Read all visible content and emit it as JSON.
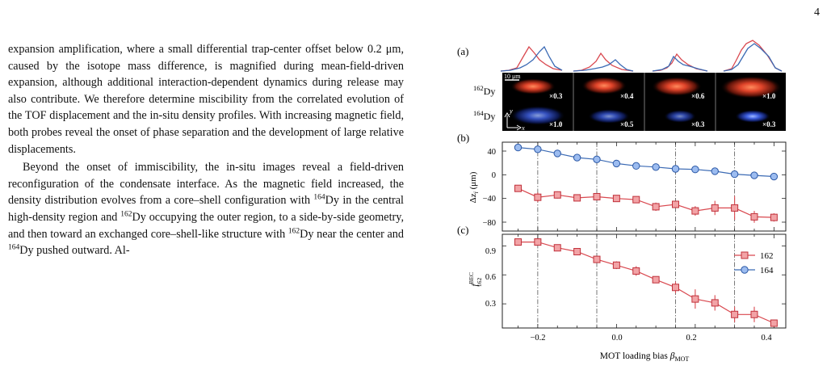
{
  "page_number": "4",
  "para1": "expansion amplification, where a small differential trap-center offset below 0.2 μm, caused by the isotope mass difference, is magnified during mean-field-driven expansion, although additional interaction-dependent dynamics during release may also contribute. We therefore determine miscibility from the correlated evolution of the TOF displacement and the in-situ density profiles. With increasing magnetic field, both probes reveal the onset of phase separation and the development of large relative displacements.",
  "para2": {
    "a": "Beyond the onset of immiscibility, the in-situ images reveal a field-driven reconfiguration of the condensate interface. As the magnetic field increased, the density distribution evolves from a core–shell configuration with ",
    "iso1": "164",
    "b": "Dy in the central high-density region and ",
    "iso2": "162",
    "c": "Dy occupying the outer region, to a side-by-side geometry, and then toward an exchanged core–shell-like structure with ",
    "iso3": "162",
    "d": "Dy near the center and ",
    "iso4": "164",
    "e": "Dy pushed outward. Al-"
  },
  "figure": {
    "panel_a": {
      "label": "(a)",
      "row_labels": {
        "top_sup": "162",
        "top": "Dy",
        "bottom_sup": "164",
        "bottom": "Dy"
      },
      "scale_bar": "10 μm",
      "axes": {
        "x": "x",
        "y": "y"
      },
      "top_factors": [
        "×0.3",
        "×0.4",
        "×0.6",
        "×1.0"
      ],
      "bottom_factors": [
        "×1.0",
        "×0.5",
        "×0.3",
        "×0.3"
      ],
      "profile_colors": {
        "162": "#d9484f",
        "164": "#3b6ab4"
      }
    },
    "panel_b": {
      "label": "(b)",
      "ylabel": "Δz",
      "ylabel_sub": "i",
      "ylabel_unit": " (μm)",
      "yticks": [
        "40",
        "0",
        "−40",
        "−80"
      ]
    },
    "panel_c": {
      "label": "(c)",
      "ylabel": "f",
      "ylabel_sup": "BEC",
      "ylabel_sub": "162",
      "yticks": [
        "0.9",
        "0.6",
        "0.3"
      ],
      "legend": [
        "162",
        "164"
      ]
    },
    "xlabel": "MOT loading bias  ",
    "xlabel_sym": "β",
    "xlabel_sub": "MOT",
    "xticks": [
      "−0.2",
      "0.0",
      "0.2",
      "0.4"
    ]
  },
  "chart_data": [
    {
      "type": "line",
      "panel": "(b)",
      "x": [
        -0.25,
        -0.2,
        -0.15,
        -0.1,
        -0.05,
        0.0,
        0.05,
        0.1,
        0.15,
        0.2,
        0.25,
        0.3,
        0.35,
        0.4
      ],
      "series": [
        {
          "name": "164",
          "values": [
            46,
            43,
            36,
            29,
            26,
            19,
            15,
            13,
            10,
            9,
            6,
            1,
            -1,
            -3
          ],
          "err": [
            4,
            3,
            3,
            3,
            3,
            2,
            2,
            2,
            2,
            2,
            2,
            2,
            2,
            2
          ],
          "color": "#3b6ab4",
          "marker": "circle"
        },
        {
          "name": "162",
          "values": [
            -23,
            -38,
            -34,
            -39,
            -37,
            -40,
            -42,
            -54,
            -50,
            -61,
            -56,
            -56,
            -71,
            -72
          ],
          "err": [
            3,
            8,
            6,
            4,
            5,
            4,
            4,
            7,
            6,
            8,
            12,
            20,
            10,
            7
          ],
          "color": "#d9484f",
          "marker": "square"
        }
      ],
      "ylim": [
        -95,
        55
      ],
      "xlim": [
        -0.29,
        0.43
      ],
      "dashed_vlines": [
        -0.2,
        -0.05,
        0.15,
        0.3
      ]
    },
    {
      "type": "line",
      "panel": "(c)",
      "x": [
        -0.25,
        -0.2,
        -0.15,
        -0.1,
        -0.05,
        0.0,
        0.05,
        0.1,
        0.15,
        0.2,
        0.25,
        0.3,
        0.35,
        0.4
      ],
      "series": [
        {
          "name": "162",
          "values": [
            0.94,
            0.94,
            0.88,
            0.84,
            0.76,
            0.7,
            0.64,
            0.55,
            0.47,
            0.35,
            0.31,
            0.19,
            0.19,
            0.1
          ],
          "err": [
            0.02,
            0.02,
            0.02,
            0.02,
            0.02,
            0.04,
            0.05,
            0.02,
            0.06,
            0.1,
            0.08,
            0.08,
            0.08,
            0.02
          ],
          "color": "#d9484f",
          "marker": "square"
        }
      ],
      "ylim": [
        0.05,
        1.02
      ],
      "xlim": [
        -0.29,
        0.43
      ],
      "legend": "top-right",
      "dashed_vlines": [
        -0.2,
        -0.05,
        0.15,
        0.3
      ]
    }
  ]
}
